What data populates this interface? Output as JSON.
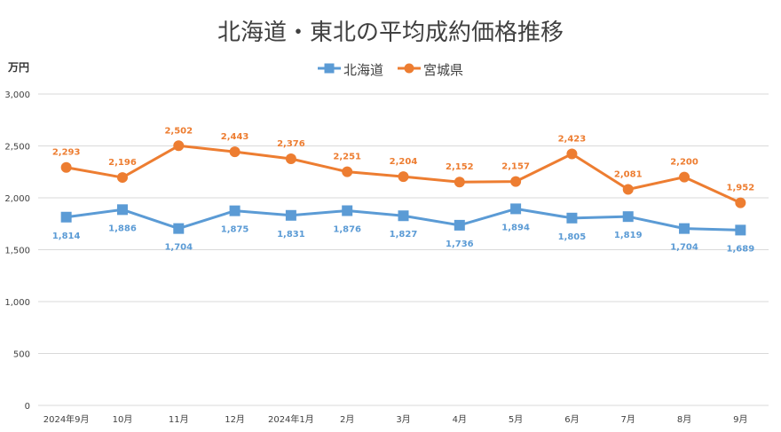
{
  "chart_data": {
    "type": "line",
    "title": "北海道・東北の平均成約価格推移",
    "ylabel": "万円",
    "xlabel": "",
    "categories": [
      "2024年9月",
      "10月",
      "11月",
      "12月",
      "2024年1月",
      "2月",
      "3月",
      "4月",
      "5月",
      "6月",
      "7月",
      "8月",
      "9月"
    ],
    "ylim": [
      0,
      3000
    ],
    "yticks": [
      0,
      500,
      1000,
      1500,
      2000,
      2500,
      3000
    ],
    "ytick_labels": [
      "0",
      "500",
      "1,000",
      "1,500",
      "2,000",
      "2,500",
      "3,000"
    ],
    "grid": true,
    "legend_position": "top-center",
    "series": [
      {
        "name": "北海道",
        "color": "#5b9bd5",
        "marker": "square",
        "values": [
          1814,
          1886,
          1704,
          1875,
          1831,
          1876,
          1827,
          1736,
          1894,
          1805,
          1819,
          1704,
          1689
        ],
        "labels": [
          "1,814",
          "1,886",
          "1,704",
          "1,875",
          "1,831",
          "1,876",
          "1,827",
          "1,736",
          "1,894",
          "1,805",
          "1,819",
          "1,704",
          "1,689"
        ],
        "label_position": "below"
      },
      {
        "name": "宮城県",
        "color": "#ed7d31",
        "marker": "circle",
        "values": [
          2293,
          2196,
          2502,
          2443,
          2376,
          2251,
          2204,
          2152,
          2157,
          2423,
          2081,
          2200,
          1952
        ],
        "labels": [
          "2,293",
          "2,196",
          "2,502",
          "2,443",
          "2,376",
          "2,251",
          "2,204",
          "2,152",
          "2,157",
          "2,423",
          "2,081",
          "2,200",
          "1,952"
        ],
        "label_position": "above"
      }
    ]
  }
}
